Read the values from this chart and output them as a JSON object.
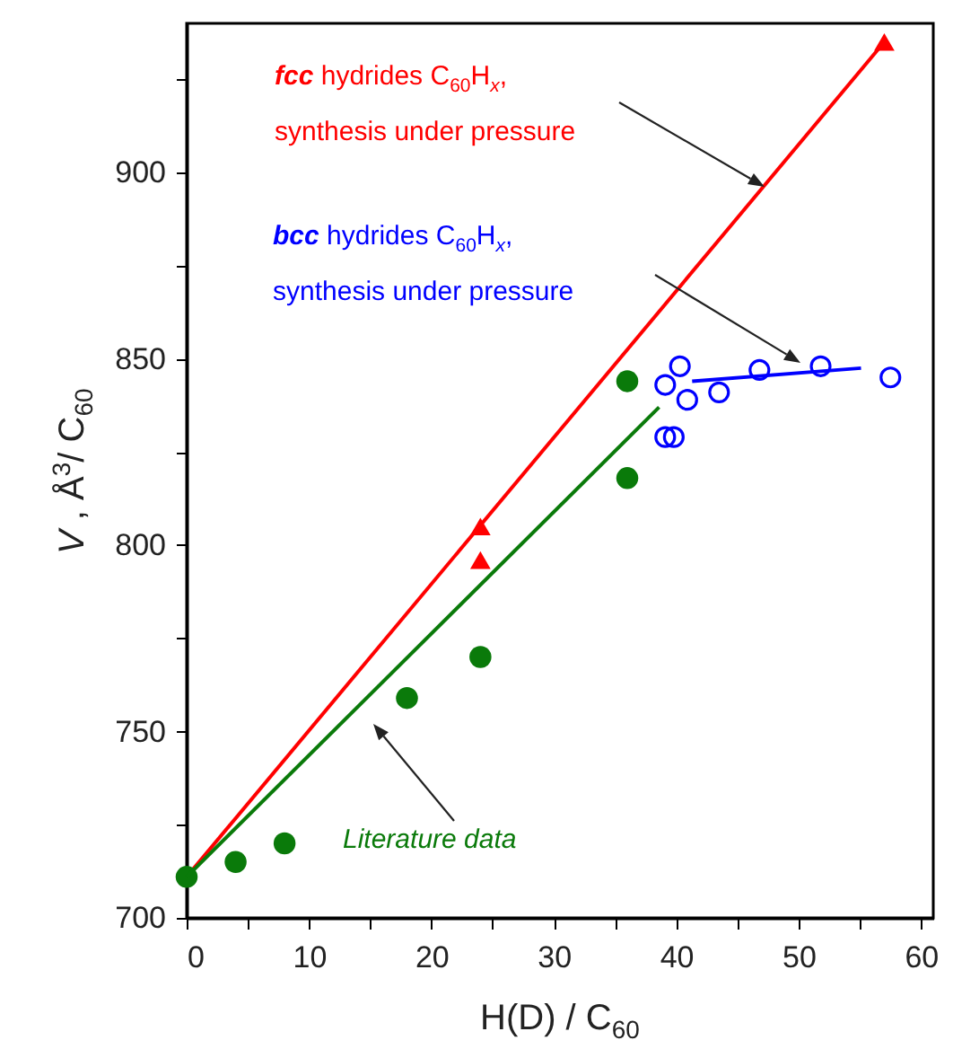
{
  "chart_data": {
    "type": "scatter",
    "xlabel": "H(D) / C$_{60}$",
    "ylabel": "V , Å$^{3}$/ C$_{60}$",
    "xlim": [
      0,
      61
    ],
    "ylim": [
      700,
      940
    ],
    "xticks": [
      0,
      {
        "value": 5,
        "label": null
      },
      10,
      {
        "value": 15,
        "label": null
      },
      20,
      {
        "value": 25,
        "label": null
      },
      30,
      {
        "value": 35,
        "label": null
      },
      40,
      {
        "value": 45,
        "label": null
      },
      50,
      {
        "value": 55,
        "label": null
      },
      60
    ],
    "yticks": [
      700,
      {
        "value": 725,
        "label": null
      },
      750,
      {
        "value": 775,
        "label": null
      },
      800,
      {
        "value": 825,
        "label": null
      },
      850,
      {
        "value": 875,
        "label": null
      },
      900,
      {
        "value": 925,
        "label": null
      }
    ],
    "grid": false,
    "series": [
      {
        "type": "scatter",
        "marker": "triangle",
        "color": "#ff0000",
        "x": [
          24,
          24,
          57
        ],
        "values": [
          805,
          796,
          935
        ]
      },
      {
        "type": "line",
        "color": "#ff0000",
        "x": [
          0,
          57
        ],
        "values": [
          711,
          935
        ]
      },
      {
        "type": "scatter",
        "marker": "circle",
        "color": "#0000ff",
        "x": [
          39.1,
          40.3,
          40.9,
          39.1,
          39.8,
          43.5,
          46.8,
          51.8,
          57.5
        ],
        "values": [
          843,
          848,
          839,
          829,
          829,
          841,
          847,
          848,
          845
        ]
      },
      {
        "type": "line",
        "color": "#0000ff",
        "x": [
          41.3,
          55.1
        ],
        "values": [
          844,
          847.5
        ]
      },
      {
        "type": "scatter",
        "marker": "circle",
        "color": "#0a7a0a",
        "x": [
          0,
          4,
          8,
          18,
          24,
          36,
          36
        ],
        "values": [
          711,
          715,
          720,
          759,
          770,
          844,
          818
        ]
      },
      {
        "type": "line",
        "color": "#0a7a0a",
        "x": [
          0,
          38.6
        ],
        "values": [
          711,
          837
        ]
      }
    ],
    "annotations": [
      "fcc hydrides C$_{60}$H$_{x}$,\nsynthesis under pressure",
      "bcc hydrides C$_{60}$H$_{x}$,\nsynthesis under pressure",
      "Literature data"
    ]
  }
}
